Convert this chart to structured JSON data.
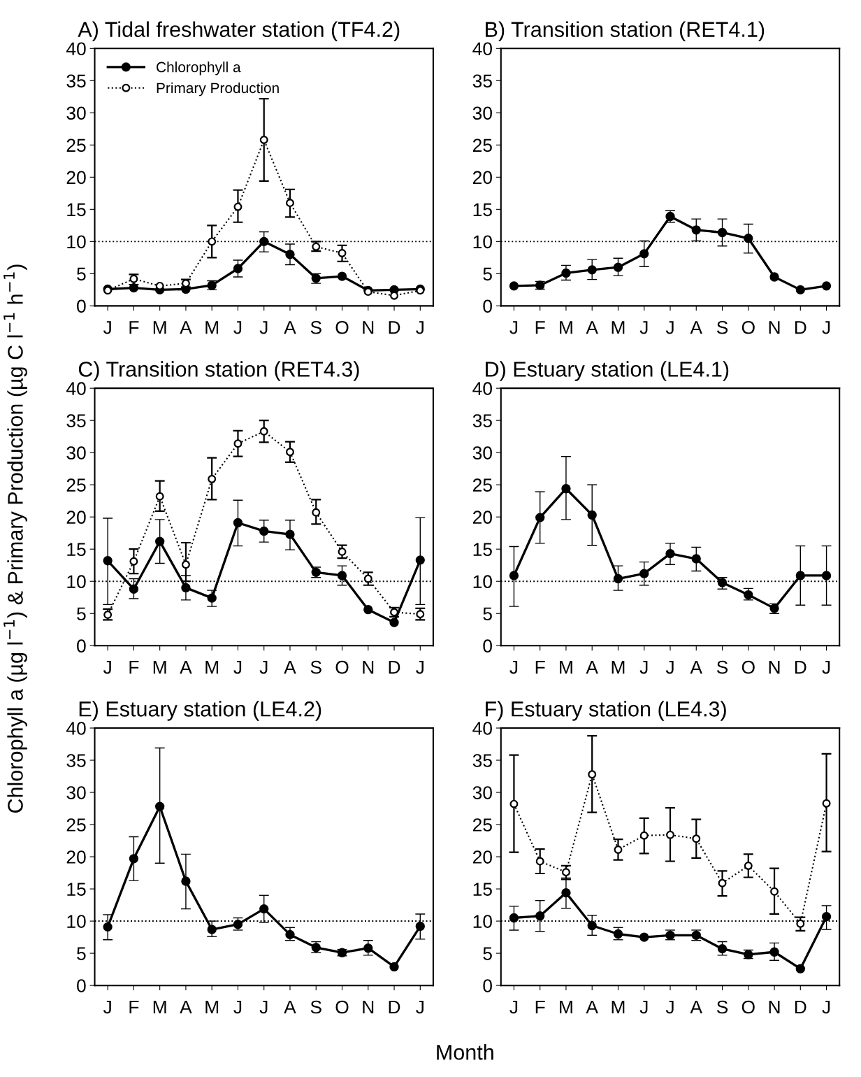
{
  "chart_data": [
    {
      "type": "line",
      "title": "A) Tidal freshwater station (TF4.2)",
      "categories": [
        "J",
        "F",
        "M",
        "A",
        "M",
        "J",
        "J",
        "A",
        "S",
        "O",
        "N",
        "D",
        "J"
      ],
      "ylim": [
        0,
        40
      ],
      "yticks": [
        0,
        5,
        10,
        15,
        20,
        25,
        30,
        35,
        40
      ],
      "legend": "top left",
      "ref_lines": [
        {
          "axis": "y",
          "value": 10,
          "line_style": "dotted",
          "color": "#000000"
        }
      ],
      "series": [
        {
          "name": "Chlorophyll a",
          "color": "#000000",
          "marker": "circle",
          "line_style": "solid",
          "values": [
            2.6,
            2.8,
            2.5,
            2.6,
            3.2,
            5.8,
            10.0,
            8.0,
            4.3,
            4.6,
            2.4,
            2.5,
            2.6
          ],
          "errors": [
            null,
            null,
            null,
            null,
            [
              2.5,
              3.9
            ],
            [
              4.5,
              7.1
            ],
            [
              8.4,
              11.5
            ],
            [
              6.4,
              9.6
            ],
            [
              3.5,
              5.0
            ],
            null,
            null,
            null,
            null
          ]
        },
        {
          "name": "Primary Production",
          "color": "#000000",
          "marker": "circle",
          "line_style": "dotted",
          "values": [
            2.4,
            4.2,
            3.1,
            3.5,
            10.0,
            15.4,
            25.8,
            16.0,
            9.2,
            8.2,
            2.2,
            1.6,
            2.4
          ],
          "errors": [
            null,
            [
              3.3,
              4.9
            ],
            null,
            [
              2.9,
              4.1
            ],
            [
              7.5,
              12.5
            ],
            [
              13.0,
              18.0
            ],
            [
              19.4,
              32.2
            ],
            [
              13.8,
              18.1
            ],
            [
              8.5,
              10.0
            ],
            [
              6.9,
              9.4
            ],
            null,
            null,
            null
          ]
        }
      ]
    },
    {
      "type": "line",
      "title": "B) Transition station (RET4.1)",
      "categories": [
        "J",
        "F",
        "M",
        "A",
        "M",
        "J",
        "J",
        "A",
        "S",
        "O",
        "N",
        "D",
        "J"
      ],
      "ylim": [
        0,
        40
      ],
      "yticks": [
        0,
        5,
        10,
        15,
        20,
        25,
        30,
        35,
        40
      ],
      "ref_lines": [
        {
          "axis": "y",
          "value": 10,
          "line_style": "dotted",
          "color": "#000000"
        }
      ],
      "series": [
        {
          "color": "#000000",
          "marker": "circle",
          "line_style": "solid",
          "values": [
            3.1,
            3.2,
            5.1,
            5.6,
            6.0,
            8.1,
            13.9,
            11.8,
            11.4,
            10.5,
            4.5,
            2.5,
            3.1
          ],
          "errors": [
            null,
            [
              2.6,
              3.8
            ],
            [
              4.0,
              6.3
            ],
            [
              4.1,
              7.2
            ],
            [
              4.7,
              7.4
            ],
            [
              6.1,
              10.1
            ],
            [
              13.0,
              14.8
            ],
            [
              10.1,
              13.5
            ],
            [
              9.3,
              13.5
            ],
            [
              8.2,
              12.7
            ],
            null,
            null,
            null
          ]
        }
      ]
    },
    {
      "type": "line",
      "title": "C) Transition station (RET4.3)",
      "ylabel": "Chlorophyll a (µg l$^{−1}$) & Primary Production (µg C l$^{−1}$ h$^{−1}$)",
      "categories": [
        "J",
        "F",
        "M",
        "A",
        "M",
        "J",
        "J",
        "A",
        "S",
        "O",
        "N",
        "D",
        "J"
      ],
      "ylim": [
        0,
        40
      ],
      "yticks": [
        0,
        5,
        10,
        15,
        20,
        25,
        30,
        35,
        40
      ],
      "ref_lines": [
        {
          "axis": "y",
          "value": 10,
          "line_style": "dotted",
          "color": "#000000"
        }
      ],
      "series": [
        {
          "color": "#000000",
          "marker": "circle",
          "line_style": "solid",
          "values": [
            13.2,
            8.8,
            16.2,
            9.0,
            7.4,
            19.1,
            17.8,
            17.3,
            11.4,
            10.9,
            5.6,
            3.6,
            13.3
          ],
          "errors": [
            [
              6.4,
              19.8
            ],
            [
              7.3,
              10.4
            ],
            [
              12.8,
              19.6
            ],
            [
              7.1,
              10.9
            ],
            [
              6.1,
              8.6
            ],
            [
              15.5,
              22.6
            ],
            [
              16.1,
              19.5
            ],
            [
              14.9,
              19.5
            ],
            [
              10.6,
              12.2
            ],
            [
              9.4,
              12.4
            ],
            null,
            null,
            [
              6.4,
              19.9
            ]
          ]
        },
        {
          "color": "#000000",
          "marker": "circle",
          "line_style": "dotted",
          "values": [
            4.8,
            13.1,
            23.2,
            12.6,
            25.9,
            31.4,
            33.3,
            30.1,
            20.7,
            14.6,
            10.4,
            5.2,
            4.9
          ],
          "errors": [
            [
              4.0,
              5.7
            ],
            [
              11.2,
              15.0
            ],
            [
              20.9,
              25.6
            ],
            [
              10.0,
              16.0
            ],
            [
              22.7,
              29.2
            ],
            [
              29.4,
              33.4
            ],
            [
              31.6,
              35.0
            ],
            [
              28.5,
              31.7
            ],
            [
              18.9,
              22.7
            ],
            [
              13.6,
              15.6
            ],
            [
              9.4,
              11.4
            ],
            [
              4.5,
              5.9
            ],
            [
              4.0,
              5.8
            ]
          ]
        }
      ]
    },
    {
      "type": "line",
      "title": "D) Estuary station (LE4.1)",
      "categories": [
        "J",
        "F",
        "M",
        "A",
        "M",
        "J",
        "J",
        "A",
        "S",
        "O",
        "N",
        "D",
        "J"
      ],
      "ylim": [
        0,
        40
      ],
      "yticks": [
        0,
        5,
        10,
        15,
        20,
        25,
        30,
        35,
        40
      ],
      "ref_lines": [
        {
          "axis": "y",
          "value": 10,
          "line_style": "dotted",
          "color": "#000000"
        }
      ],
      "series": [
        {
          "color": "#000000",
          "marker": "circle",
          "line_style": "solid",
          "values": [
            10.9,
            19.9,
            24.4,
            20.3,
            10.4,
            11.2,
            14.3,
            13.5,
            9.8,
            7.9,
            5.8,
            10.9,
            10.9
          ],
          "errors": [
            [
              6.1,
              15.4
            ],
            [
              15.9,
              23.9
            ],
            [
              19.6,
              29.4
            ],
            [
              15.6,
              25.0
            ],
            [
              8.6,
              12.4
            ],
            [
              9.4,
              13.0
            ],
            [
              12.6,
              15.9
            ],
            [
              11.6,
              15.3
            ],
            [
              8.8,
              10.6
            ],
            [
              7.1,
              8.9
            ],
            [
              5.0,
              6.5
            ],
            [
              6.3,
              15.5
            ],
            [
              6.3,
              15.5
            ]
          ]
        }
      ]
    },
    {
      "type": "line",
      "title": "E) Estuary station (LE4.2)",
      "xlabel": "Month",
      "categories": [
        "J",
        "F",
        "M",
        "A",
        "M",
        "J",
        "J",
        "A",
        "S",
        "O",
        "N",
        "D",
        "J"
      ],
      "ylim": [
        0,
        40
      ],
      "yticks": [
        0,
        5,
        10,
        15,
        20,
        25,
        30,
        35,
        40
      ],
      "ref_lines": [
        {
          "axis": "y",
          "value": 10,
          "line_style": "dotted",
          "color": "#000000"
        }
      ],
      "series": [
        {
          "color": "#000000",
          "marker": "circle",
          "line_style": "solid",
          "values": [
            9.1,
            19.7,
            27.8,
            16.2,
            8.7,
            9.5,
            11.9,
            7.9,
            5.9,
            5.1,
            5.8,
            2.9,
            9.2
          ],
          "errors": [
            [
              7.1,
              11.0
            ],
            [
              16.3,
              23.1
            ],
            [
              19.0,
              36.9
            ],
            [
              11.9,
              20.4
            ],
            [
              7.6,
              10.0
            ],
            [
              8.6,
              10.5
            ],
            [
              9.8,
              14.0
            ],
            [
              7.0,
              9.0
            ],
            [
              5.1,
              6.8
            ],
            [
              4.6,
              5.6
            ],
            [
              4.7,
              7.0
            ],
            null,
            [
              7.2,
              11.1
            ]
          ]
        }
      ]
    },
    {
      "type": "line",
      "title": "F) Estuary station (LE4.3)",
      "categories": [
        "J",
        "F",
        "M",
        "A",
        "M",
        "J",
        "J",
        "A",
        "S",
        "O",
        "N",
        "D",
        "J"
      ],
      "ylim": [
        0,
        40
      ],
      "yticks": [
        0,
        5,
        10,
        15,
        20,
        25,
        30,
        35,
        40
      ],
      "ref_lines": [
        {
          "axis": "y",
          "value": 10,
          "line_style": "dotted",
          "color": "#000000"
        }
      ],
      "series": [
        {
          "color": "#000000",
          "marker": "circle",
          "line_style": "solid",
          "values": [
            10.5,
            10.8,
            14.4,
            9.3,
            8.0,
            7.5,
            7.8,
            7.8,
            5.7,
            4.8,
            5.2,
            2.6,
            10.7
          ],
          "errors": [
            [
              8.6,
              12.3
            ],
            [
              8.4,
              13.2
            ],
            [
              12.0,
              16.7
            ],
            [
              7.8,
              10.9
            ],
            [
              7.1,
              9.0
            ],
            null,
            [
              7.1,
              8.6
            ],
            [
              7.0,
              8.6
            ],
            [
              4.7,
              6.8
            ],
            [
              4.2,
              5.5
            ],
            [
              3.9,
              6.6
            ],
            null,
            [
              8.7,
              12.4
            ]
          ]
        },
        {
          "color": "#000000",
          "marker": "circle",
          "line_style": "dotted",
          "values": [
            28.2,
            19.3,
            17.6,
            32.8,
            21.1,
            23.3,
            23.4,
            22.8,
            15.9,
            18.6,
            14.6,
            9.6,
            28.3
          ],
          "errors": [
            [
              20.7,
              35.8
            ],
            [
              17.4,
              21.2
            ],
            [
              16.5,
              18.6
            ],
            [
              26.9,
              38.8
            ],
            [
              19.5,
              22.7
            ],
            [
              20.5,
              26.0
            ],
            [
              19.3,
              27.6
            ],
            [
              19.8,
              25.8
            ],
            [
              13.9,
              17.8
            ],
            [
              16.8,
              20.4
            ],
            [
              11.1,
              18.2
            ],
            [
              8.5,
              10.6
            ],
            [
              20.8,
              36.0
            ]
          ]
        }
      ]
    }
  ]
}
